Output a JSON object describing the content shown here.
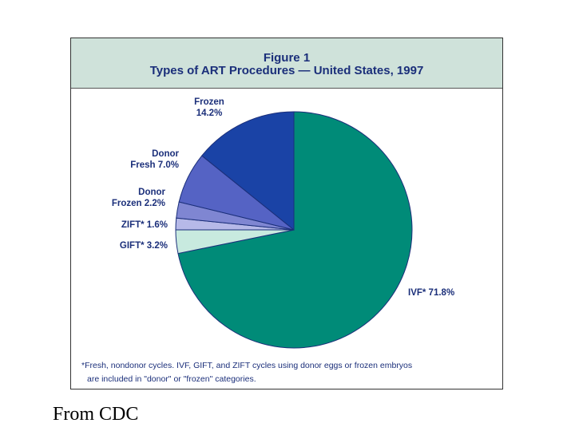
{
  "figure": {
    "number": "Figure 1",
    "title": "Types of ART Procedures — United States, 1997"
  },
  "chart_data": {
    "type": "pie",
    "title": "Types of ART Procedures — United States, 1997",
    "slices": [
      {
        "name": "IVF*",
        "value": 71.8,
        "label_lines": [
          "IVF* 71.8%"
        ],
        "color": "#008b78"
      },
      {
        "name": "GIFT*",
        "value": 3.2,
        "label_lines": [
          "GIFT* 3.2%"
        ],
        "color": "#c8eadf"
      },
      {
        "name": "ZIFT*",
        "value": 1.6,
        "label_lines": [
          "ZIFT* 1.6%"
        ],
        "color": "#b6b9e8"
      },
      {
        "name": "Donor Frozen",
        "value": 2.2,
        "label_lines": [
          "Donor",
          "Frozen 2.2%"
        ],
        "color": "#7f86d2"
      },
      {
        "name": "Donor Fresh",
        "value": 7.0,
        "label_lines": [
          "Donor",
          "Fresh 7.0%"
        ],
        "color": "#5563c4"
      },
      {
        "name": "Frozen",
        "value": 14.2,
        "label_lines": [
          "Frozen",
          "14.2%"
        ],
        "color": "#1a43a6"
      }
    ]
  },
  "footnote": {
    "line1": "*Fresh, nondonor cycles. IVF, GIFT, and ZIFT cycles using donor eggs or frozen embryos",
    "line2": "are included in \"donor\" or \"frozen\" categories."
  },
  "source": "From CDC"
}
